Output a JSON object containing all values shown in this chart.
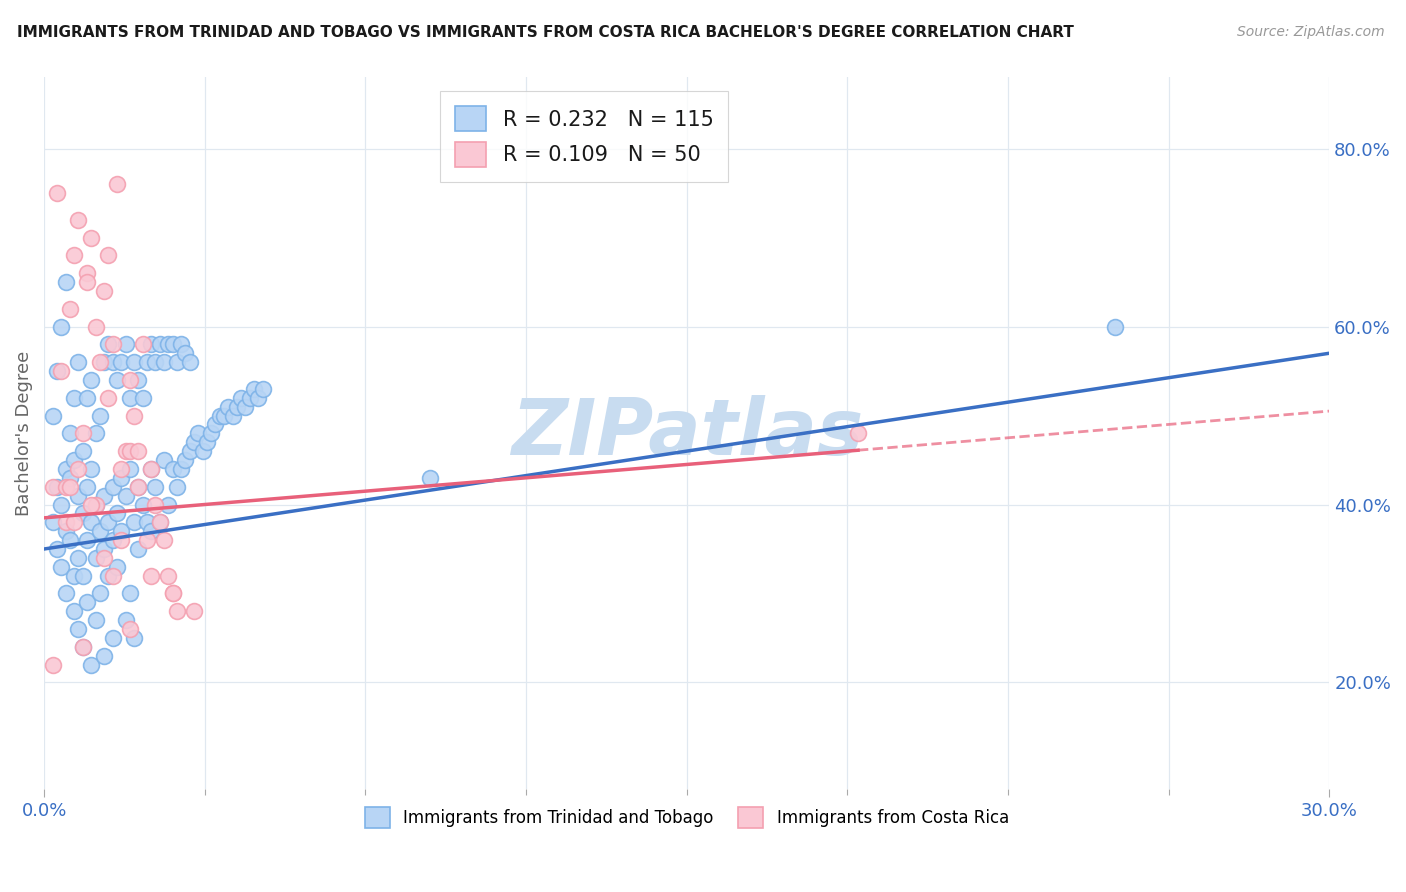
{
  "title": "IMMIGRANTS FROM TRINIDAD AND TOBAGO VS IMMIGRANTS FROM COSTA RICA BACHELOR'S DEGREE CORRELATION CHART",
  "source": "Source: ZipAtlas.com",
  "ylabel": "Bachelor's Degree",
  "xlim": [
    0.0,
    0.3
  ],
  "ylim": [
    0.08,
    0.88
  ],
  "right_yticks": [
    0.2,
    0.4,
    0.6,
    0.8
  ],
  "right_ytick_labels": [
    "20.0%",
    "40.0%",
    "60.0%",
    "80.0%"
  ],
  "xtick_labels": [
    "0.0%",
    "30.0%"
  ],
  "xticks": [
    0.0,
    0.3
  ],
  "blue_color": "#7EB3E8",
  "pink_color": "#F4A0B0",
  "blue_line_color": "#3A6FC4",
  "pink_line_color": "#E8607A",
  "blue_dot_face": "#B8D5F5",
  "pink_dot_face": "#FAC8D4",
  "watermark": "ZIPatlas",
  "watermark_color": "#C8DCF0",
  "tick_color": "#3A6FC4",
  "legend_top_blue": "R = 0.232   N = 115",
  "legend_top_pink": "R = 0.109   N = 50",
  "legend_bottom_blue": "Immigrants from Trinidad and Tobago",
  "legend_bottom_pink": "Immigrants from Costa Rica",
  "grid_color": "#E0E8F0",
  "blue_line_x0": 0.0,
  "blue_line_y0": 0.35,
  "blue_line_x1": 0.3,
  "blue_line_y1": 0.57,
  "pink_line_x0": 0.0,
  "pink_line_y0": 0.385,
  "pink_line_x1_solid": 0.19,
  "pink_line_x1": 0.3,
  "pink_line_y1": 0.505,
  "blue_x": [
    0.002,
    0.003,
    0.003,
    0.004,
    0.004,
    0.005,
    0.005,
    0.005,
    0.006,
    0.006,
    0.007,
    0.007,
    0.007,
    0.008,
    0.008,
    0.008,
    0.009,
    0.009,
    0.009,
    0.01,
    0.01,
    0.01,
    0.011,
    0.011,
    0.011,
    0.012,
    0.012,
    0.012,
    0.013,
    0.013,
    0.014,
    0.014,
    0.014,
    0.015,
    0.015,
    0.016,
    0.016,
    0.016,
    0.017,
    0.017,
    0.018,
    0.018,
    0.019,
    0.019,
    0.02,
    0.02,
    0.021,
    0.021,
    0.022,
    0.022,
    0.023,
    0.024,
    0.025,
    0.025,
    0.026,
    0.027,
    0.028,
    0.029,
    0.03,
    0.031,
    0.032,
    0.033,
    0.034,
    0.035,
    0.036,
    0.037,
    0.038,
    0.039,
    0.04,
    0.041,
    0.042,
    0.043,
    0.044,
    0.045,
    0.046,
    0.047,
    0.048,
    0.049,
    0.05,
    0.051,
    0.002,
    0.003,
    0.004,
    0.005,
    0.006,
    0.007,
    0.008,
    0.009,
    0.01,
    0.011,
    0.012,
    0.013,
    0.014,
    0.015,
    0.016,
    0.017,
    0.018,
    0.019,
    0.02,
    0.021,
    0.022,
    0.023,
    0.024,
    0.025,
    0.026,
    0.027,
    0.028,
    0.029,
    0.03,
    0.031,
    0.032,
    0.033,
    0.034,
    0.25,
    0.09
  ],
  "blue_y": [
    0.38,
    0.35,
    0.42,
    0.4,
    0.33,
    0.44,
    0.37,
    0.3,
    0.43,
    0.36,
    0.45,
    0.32,
    0.28,
    0.41,
    0.34,
    0.26,
    0.39,
    0.32,
    0.24,
    0.42,
    0.36,
    0.29,
    0.44,
    0.38,
    0.22,
    0.4,
    0.34,
    0.27,
    0.37,
    0.3,
    0.41,
    0.35,
    0.23,
    0.38,
    0.32,
    0.42,
    0.36,
    0.25,
    0.39,
    0.33,
    0.43,
    0.37,
    0.41,
    0.27,
    0.44,
    0.3,
    0.38,
    0.25,
    0.42,
    0.35,
    0.4,
    0.38,
    0.44,
    0.37,
    0.42,
    0.38,
    0.45,
    0.4,
    0.44,
    0.42,
    0.44,
    0.45,
    0.46,
    0.47,
    0.48,
    0.46,
    0.47,
    0.48,
    0.49,
    0.5,
    0.5,
    0.51,
    0.5,
    0.51,
    0.52,
    0.51,
    0.52,
    0.53,
    0.52,
    0.53,
    0.5,
    0.55,
    0.6,
    0.65,
    0.48,
    0.52,
    0.56,
    0.46,
    0.52,
    0.54,
    0.48,
    0.5,
    0.56,
    0.58,
    0.56,
    0.54,
    0.56,
    0.58,
    0.52,
    0.56,
    0.54,
    0.52,
    0.56,
    0.58,
    0.56,
    0.58,
    0.56,
    0.58,
    0.58,
    0.56,
    0.58,
    0.57,
    0.56,
    0.6,
    0.43
  ],
  "pink_x": [
    0.002,
    0.003,
    0.004,
    0.005,
    0.006,
    0.007,
    0.008,
    0.009,
    0.01,
    0.011,
    0.012,
    0.013,
    0.014,
    0.015,
    0.016,
    0.017,
    0.018,
    0.019,
    0.02,
    0.021,
    0.022,
    0.023,
    0.024,
    0.025,
    0.026,
    0.027,
    0.028,
    0.029,
    0.03,
    0.031,
    0.01,
    0.015,
    0.02,
    0.005,
    0.008,
    0.012,
    0.018,
    0.025,
    0.035,
    0.007,
    0.014,
    0.022,
    0.19,
    0.002,
    0.009,
    0.02,
    0.016,
    0.006,
    0.011,
    0.03
  ],
  "pink_y": [
    0.42,
    0.75,
    0.55,
    0.38,
    0.62,
    0.68,
    0.72,
    0.48,
    0.66,
    0.7,
    0.6,
    0.56,
    0.64,
    0.52,
    0.58,
    0.76,
    0.44,
    0.46,
    0.54,
    0.5,
    0.42,
    0.58,
    0.36,
    0.44,
    0.4,
    0.38,
    0.36,
    0.32,
    0.3,
    0.28,
    0.65,
    0.68,
    0.46,
    0.42,
    0.44,
    0.4,
    0.36,
    0.32,
    0.28,
    0.38,
    0.34,
    0.46,
    0.48,
    0.22,
    0.24,
    0.26,
    0.32,
    0.42,
    0.4,
    0.3
  ]
}
